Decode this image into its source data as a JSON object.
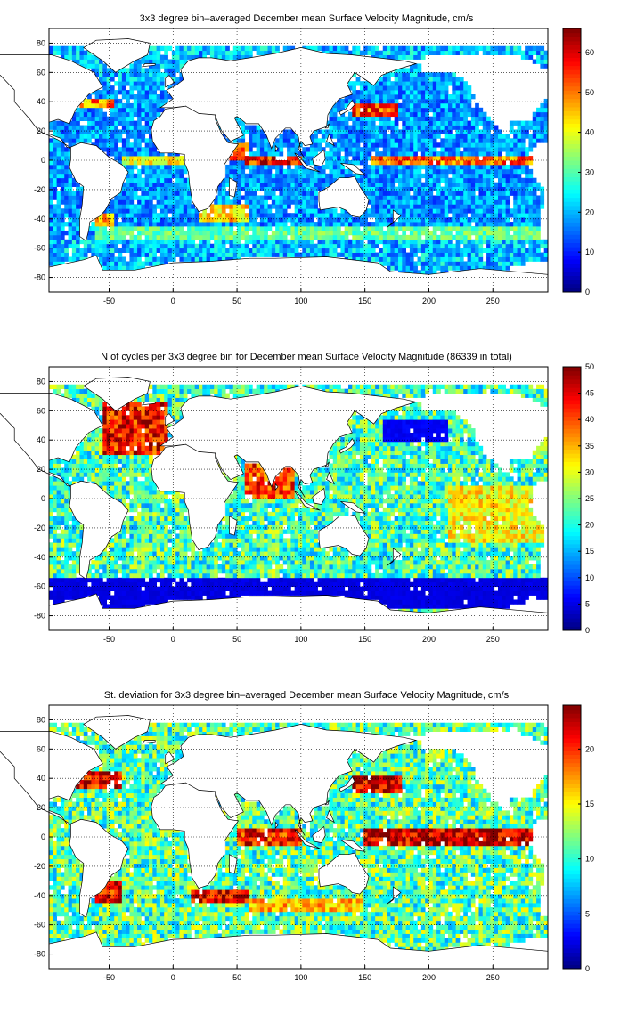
{
  "chart_data": [
    {
      "type": "heatmap",
      "title": "3x3 degree bin–averaged December mean Surface Velocity Magnitude, cm/s",
      "xlim": [
        -97,
        293
      ],
      "ylim": [
        -90,
        90
      ],
      "xticks": [
        -50,
        0,
        50,
        100,
        150,
        200,
        250
      ],
      "yticks": [
        -80,
        -60,
        -40,
        -20,
        0,
        20,
        40,
        60,
        80
      ],
      "grid": true,
      "bin_size_deg": 3,
      "colormap": "jet",
      "colorbar": {
        "min": 0,
        "max": 66,
        "ticks": [
          0,
          10,
          20,
          30,
          40,
          50,
          60
        ],
        "placement": "right"
      },
      "background_level": 18,
      "features": [
        {
          "name": "equatorial-pacific-current",
          "lon": [
            155,
            290
          ],
          "lat": [
            -3,
            3
          ],
          "value": 52
        },
        {
          "name": "kuroshio",
          "lon": [
            140,
            175
          ],
          "lat": [
            30,
            38
          ],
          "value": 55
        },
        {
          "name": "gulf-stream",
          "lon": [
            -78,
            -45
          ],
          "lat": [
            35,
            42
          ],
          "value": 50
        },
        {
          "name": "antarctic-circumpolar-current",
          "lon": [
            -60,
            290
          ],
          "lat": [
            -55,
            -45
          ],
          "value": 32
        },
        {
          "name": "agulhas-current",
          "lon": [
            20,
            60
          ],
          "lat": [
            -42,
            -30
          ],
          "value": 45
        },
        {
          "name": "somali-current",
          "lon": [
            45,
            60
          ],
          "lat": [
            0,
            12
          ],
          "value": 50
        },
        {
          "name": "indian-ocean-equatorial-jet",
          "lon": [
            55,
            100
          ],
          "lat": [
            -3,
            3
          ],
          "value": 58
        },
        {
          "name": "atlantic-equatorial-current",
          "lon": [
            -40,
            10
          ],
          "lat": [
            -3,
            3
          ],
          "value": 42
        },
        {
          "name": "brazil-malvinas-confluence",
          "lon": [
            -60,
            -45
          ],
          "lat": [
            -45,
            -35
          ],
          "value": 48
        }
      ]
    },
    {
      "type": "heatmap",
      "title": "N of cycles per 3x3 degree bin for December mean Surface Velocity Magnitude (86339 in total)",
      "xlim": [
        -97,
        293
      ],
      "ylim": [
        -90,
        90
      ],
      "xticks": [
        -50,
        0,
        50,
        100,
        150,
        200,
        250
      ],
      "yticks": [
        -80,
        -60,
        -40,
        -20,
        0,
        20,
        40,
        60,
        80
      ],
      "grid": true,
      "bin_size_deg": 3,
      "colormap": "jet",
      "colorbar": {
        "min": 0,
        "max": 50,
        "ticks": [
          0,
          5,
          10,
          15,
          20,
          25,
          30,
          35,
          40,
          45,
          50
        ],
        "placement": "right"
      },
      "background_level": 22,
      "features": [
        {
          "name": "north-atlantic-dense",
          "lon": [
            -55,
            -5
          ],
          "lat": [
            30,
            65
          ],
          "value": 45
        },
        {
          "name": "arabian-sea-bay-of-bengal",
          "lon": [
            55,
            95
          ],
          "lat": [
            0,
            25
          ],
          "value": 42
        },
        {
          "name": "southern-ocean-sparse",
          "lon": [
            -97,
            293
          ],
          "lat": [
            -75,
            -55
          ],
          "value": 5
        },
        {
          "name": "north-pacific-low",
          "lon": [
            165,
            215
          ],
          "lat": [
            40,
            55
          ],
          "value": 6
        },
        {
          "name": "east-pacific-dense",
          "lon": [
            215,
            290
          ],
          "lat": [
            -30,
            10
          ],
          "value": 32
        }
      ]
    },
    {
      "type": "heatmap",
      "title": "St. deviation for 3x3 degree bin–averaged December mean Surface Velocity Magnitude, cm/s",
      "xlim": [
        -97,
        293
      ],
      "ylim": [
        -90,
        90
      ],
      "xticks": [
        -50,
        0,
        50,
        100,
        150,
        200,
        250
      ],
      "yticks": [
        -80,
        -60,
        -40,
        -20,
        0,
        20,
        40,
        60,
        80
      ],
      "grid": true,
      "bin_size_deg": 3,
      "colormap": "jet",
      "colorbar": {
        "min": 0,
        "max": 24,
        "ticks": [
          0,
          5,
          10,
          15,
          20
        ],
        "placement": "right"
      },
      "background_level": 11,
      "features": [
        {
          "name": "equatorial-pacific",
          "lon": [
            150,
            290
          ],
          "lat": [
            -6,
            6
          ],
          "value": 23
        },
        {
          "name": "kuroshio-extension",
          "lon": [
            140,
            180
          ],
          "lat": [
            30,
            42
          ],
          "value": 23
        },
        {
          "name": "agulhas-retroflection",
          "lon": [
            15,
            60
          ],
          "lat": [
            -45,
            -36
          ],
          "value": 23
        },
        {
          "name": "indian-equatorial",
          "lon": [
            50,
            100
          ],
          "lat": [
            -5,
            5
          ],
          "value": 21
        },
        {
          "name": "gulf-stream",
          "lon": [
            -78,
            -40
          ],
          "lat": [
            33,
            45
          ],
          "value": 22
        },
        {
          "name": "brazil-current",
          "lon": [
            -60,
            -40
          ],
          "lat": [
            -45,
            -30
          ],
          "value": 22
        },
        {
          "name": "southern-ocean-band",
          "lon": [
            60,
            150
          ],
          "lat": [
            -52,
            -42
          ],
          "value": 17
        }
      ]
    }
  ]
}
